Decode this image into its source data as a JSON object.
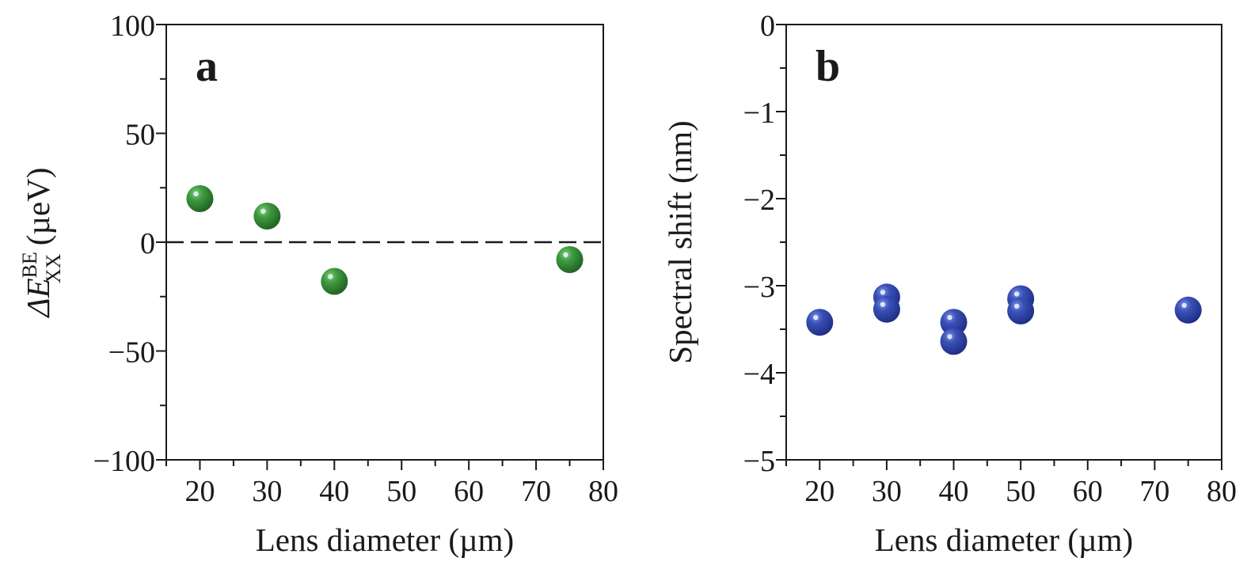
{
  "chart_data": [
    {
      "type": "scatter",
      "panel_label": "a",
      "xlabel": "Lens diameter (µm)",
      "ylabel": {
        "prefix": "ΔE",
        "superscript": "BE",
        "subscript": "XX",
        "suffix": " (µeV)"
      },
      "xlim": [
        15,
        80
      ],
      "ylim": [
        -100,
        100
      ],
      "x_ticks": [
        "20",
        "30",
        "40",
        "50",
        "60",
        "70",
        "80"
      ],
      "y_ticks": [
        "100",
        "50",
        "0",
        "−50",
        "−100"
      ],
      "reference_line": {
        "y": 0,
        "style": "dashed"
      },
      "points": [
        {
          "x": 20,
          "y": 20
        },
        {
          "x": 30,
          "y": 12
        },
        {
          "x": 40,
          "y": -18
        },
        {
          "x": 75,
          "y": -8
        }
      ],
      "marker_color": "#2e7d32",
      "grid": false
    },
    {
      "type": "scatter",
      "panel_label": "b",
      "xlabel": "Lens diameter (µm)",
      "ylabel": "Spectral shift (nm)",
      "xlim": [
        15,
        80
      ],
      "ylim": [
        -5,
        0
      ],
      "x_ticks": [
        "20",
        "30",
        "40",
        "50",
        "60",
        "70",
        "80"
      ],
      "y_ticks": [
        "0",
        "−1",
        "−2",
        "−3",
        "−4",
        "−5"
      ],
      "points": [
        {
          "x": 20,
          "y": -3.42
        },
        {
          "x": 30,
          "y": -3.13
        },
        {
          "x": 30,
          "y": -3.27
        },
        {
          "x": 40,
          "y": -3.42
        },
        {
          "x": 40,
          "y": -3.64
        },
        {
          "x": 50,
          "y": -3.15
        },
        {
          "x": 50,
          "y": -3.29
        },
        {
          "x": 75,
          "y": -3.28
        }
      ],
      "marker_color": "#2f45a8",
      "grid": false
    }
  ]
}
